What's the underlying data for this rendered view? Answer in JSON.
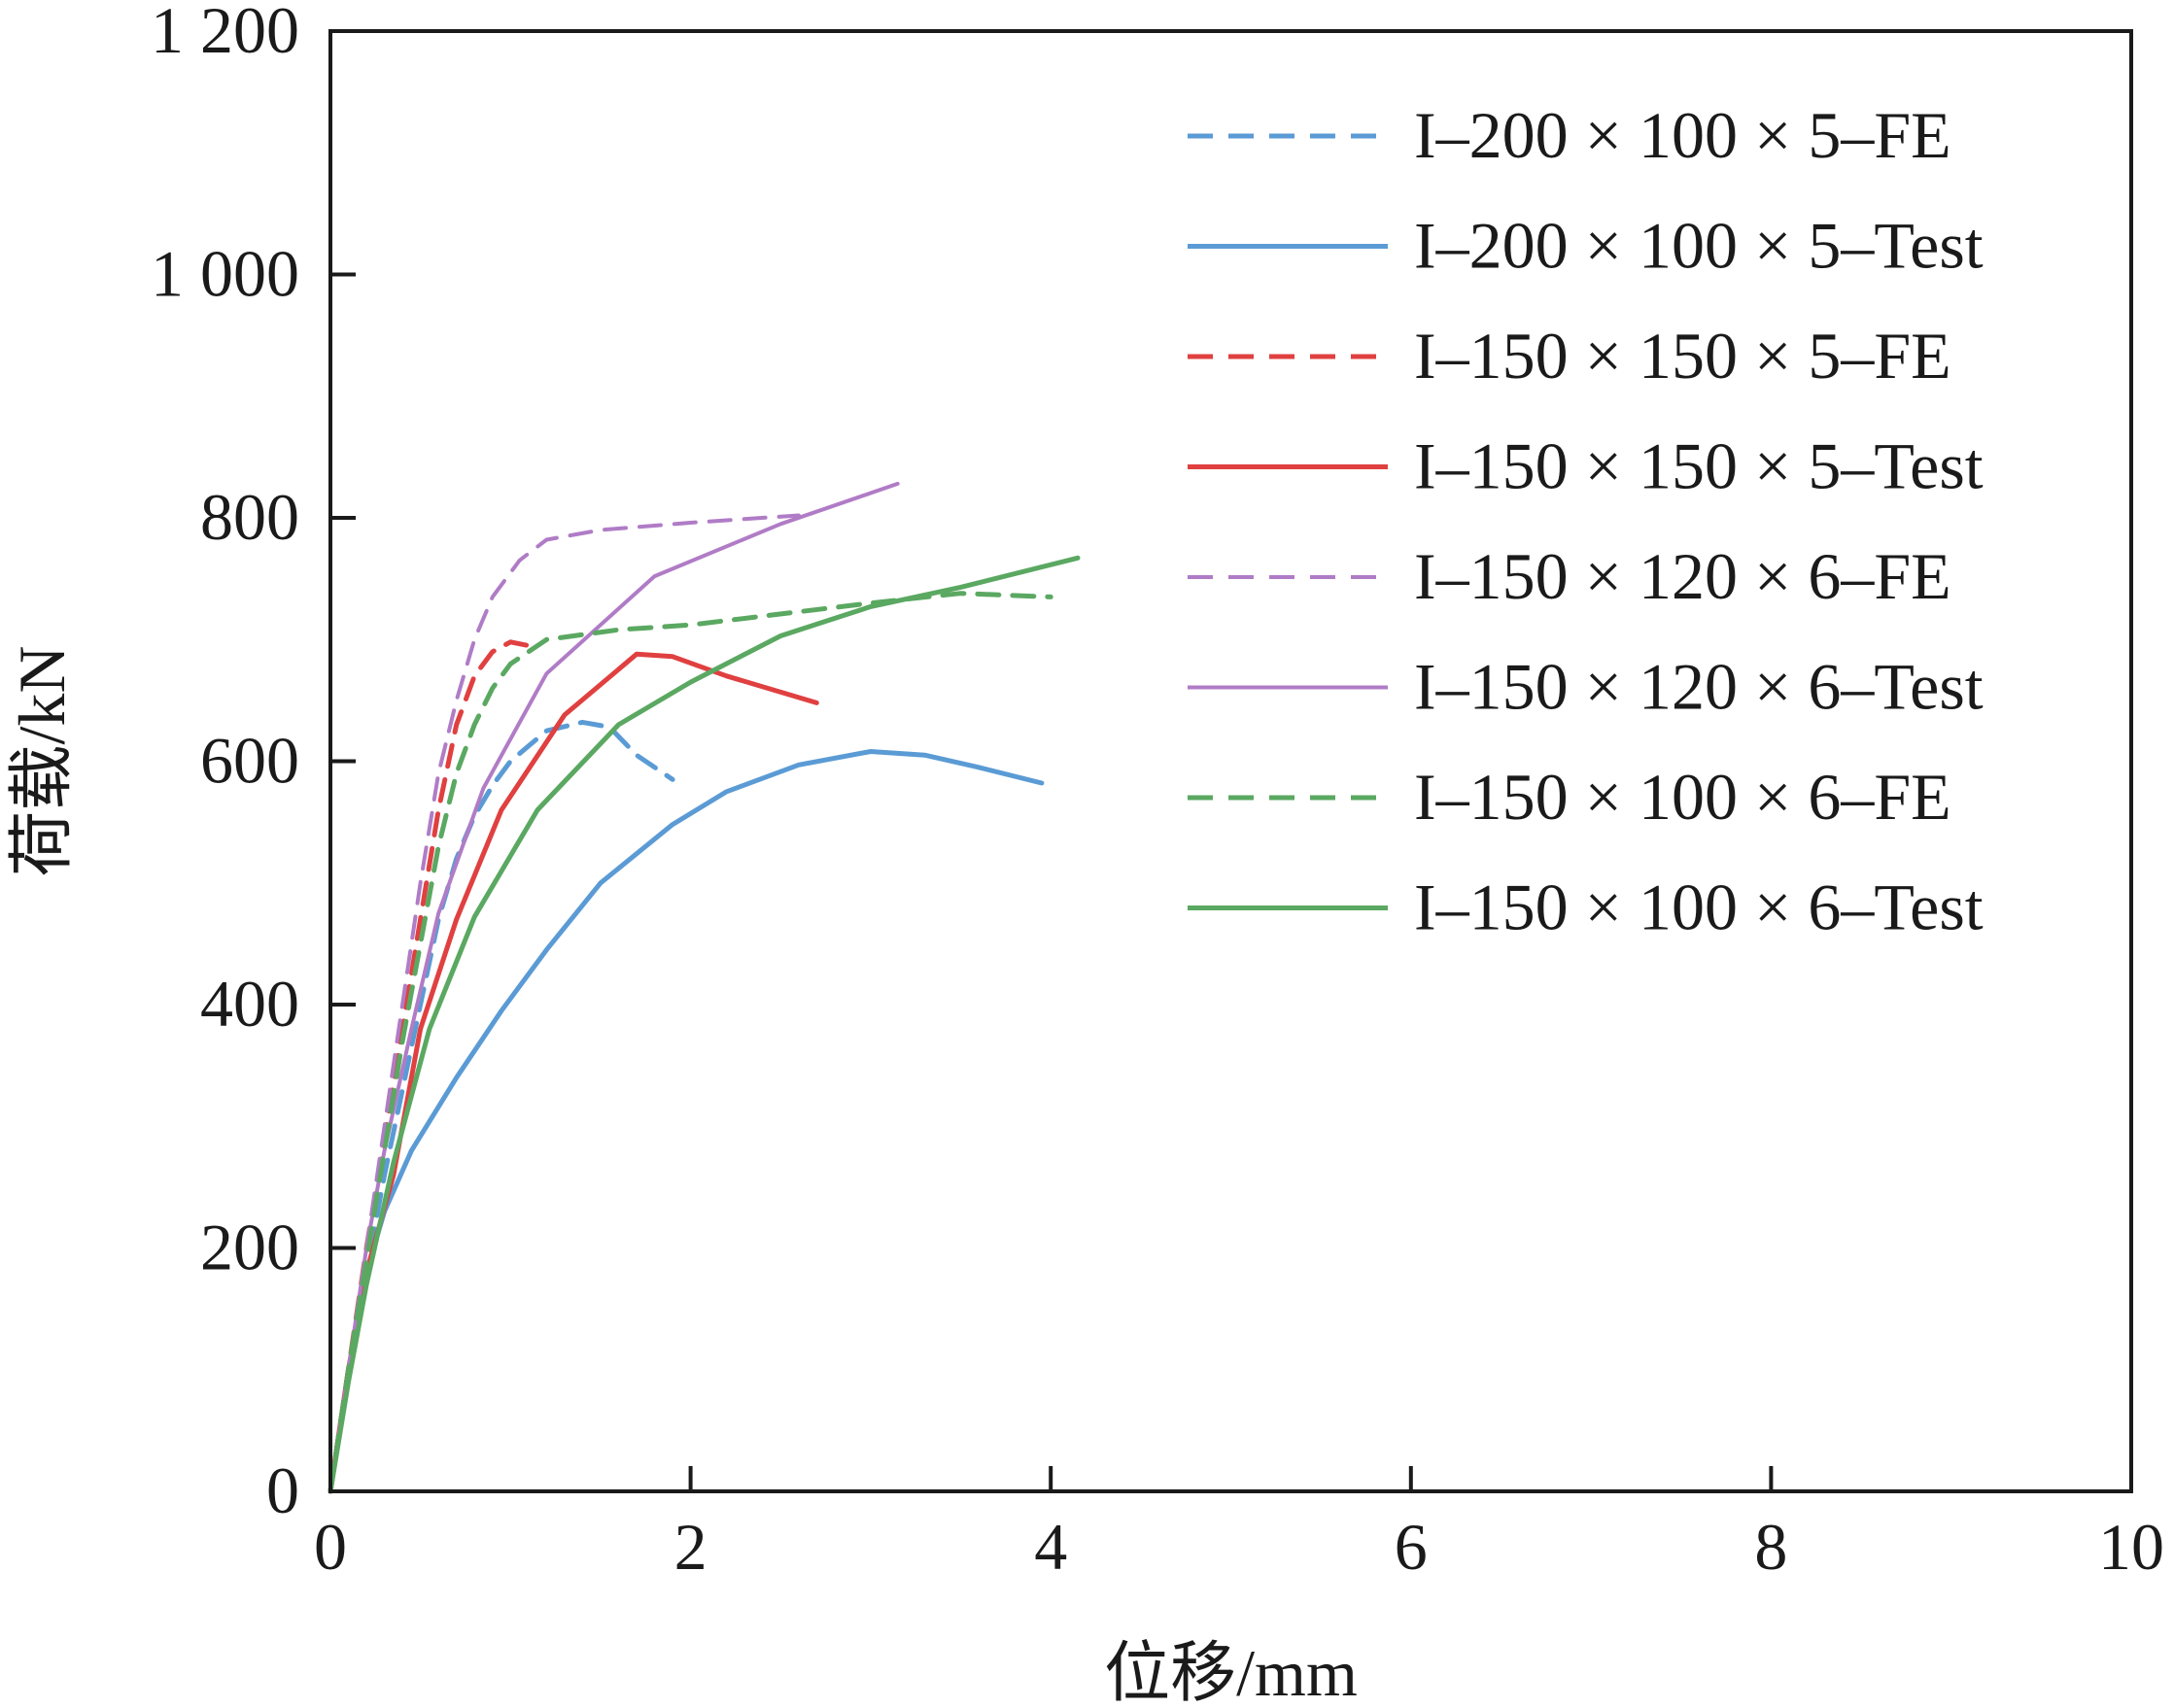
{
  "chart_data": {
    "type": "line",
    "xlabel": "位移/mm",
    "ylabel": "荷载/kN",
    "xlim": [
      0,
      10
    ],
    "ylim": [
      0,
      1200
    ],
    "x_ticks": [
      0,
      2,
      4,
      6,
      8,
      10
    ],
    "y_ticks": [
      0,
      200,
      400,
      600,
      800,
      1000,
      1200
    ],
    "x_tick_labels": [
      "0",
      "2",
      "4",
      "6",
      "8",
      "10"
    ],
    "y_tick_labels": [
      "0",
      "200",
      "400",
      "600",
      "800",
      "1 000",
      "1 200"
    ],
    "grid": false,
    "legend_position": "top-right",
    "series": [
      {
        "name": "I–200 × 100 × 5–FE",
        "color": "#5b9bd5",
        "dash": true,
        "width": 5,
        "points": [
          [
            0,
            0
          ],
          [
            0.1,
            100
          ],
          [
            0.2,
            180
          ],
          [
            0.3,
            260
          ],
          [
            0.4,
            330
          ],
          [
            0.5,
            400
          ],
          [
            0.6,
            470
          ],
          [
            0.7,
            520
          ],
          [
            0.8,
            555
          ],
          [
            0.9,
            580
          ],
          [
            1.0,
            600
          ],
          [
            1.2,
            625
          ],
          [
            1.4,
            632
          ],
          [
            1.55,
            628
          ],
          [
            1.7,
            605
          ],
          [
            1.9,
            585
          ]
        ]
      },
      {
        "name": "I–200 × 100 × 5–Test",
        "color": "#5b9bd5",
        "dash": false,
        "width": 5,
        "points": [
          [
            0,
            0
          ],
          [
            0.1,
            100
          ],
          [
            0.2,
            180
          ],
          [
            0.3,
            230
          ],
          [
            0.45,
            280
          ],
          [
            0.7,
            340
          ],
          [
            0.95,
            395
          ],
          [
            1.2,
            445
          ],
          [
            1.5,
            500
          ],
          [
            1.9,
            548
          ],
          [
            2.2,
            575
          ],
          [
            2.6,
            597
          ],
          [
            3.0,
            608
          ],
          [
            3.3,
            605
          ],
          [
            3.6,
            595
          ],
          [
            3.95,
            582
          ]
        ]
      },
      {
        "name": "I–150 × 150 × 5–FE",
        "color": "#e04040",
        "dash": true,
        "width": 5,
        "points": [
          [
            0,
            0
          ],
          [
            0.1,
            100
          ],
          [
            0.2,
            200
          ],
          [
            0.3,
            290
          ],
          [
            0.4,
            380
          ],
          [
            0.5,
            470
          ],
          [
            0.6,
            560
          ],
          [
            0.7,
            630
          ],
          [
            0.8,
            670
          ],
          [
            0.9,
            690
          ],
          [
            1.0,
            698
          ],
          [
            1.1,
            695
          ],
          [
            1.15,
            690
          ]
        ]
      },
      {
        "name": "I–150 × 150 × 5–Test",
        "color": "#e04040",
        "dash": false,
        "width": 5,
        "points": [
          [
            0,
            0
          ],
          [
            0.1,
            100
          ],
          [
            0.2,
            180
          ],
          [
            0.35,
            260
          ],
          [
            0.5,
            380
          ],
          [
            0.7,
            470
          ],
          [
            0.95,
            560
          ],
          [
            1.3,
            638
          ],
          [
            1.7,
            688
          ],
          [
            1.9,
            686
          ],
          [
            2.2,
            670
          ],
          [
            2.7,
            648
          ]
        ]
      },
      {
        "name": "I–150 × 120 × 6–FE",
        "color": "#b07cc6",
        "dash": true,
        "width": 4,
        "points": [
          [
            0,
            0
          ],
          [
            0.1,
            100
          ],
          [
            0.2,
            200
          ],
          [
            0.3,
            300
          ],
          [
            0.4,
            400
          ],
          [
            0.5,
            500
          ],
          [
            0.6,
            590
          ],
          [
            0.7,
            650
          ],
          [
            0.8,
            700
          ],
          [
            0.9,
            735
          ],
          [
            1.05,
            765
          ],
          [
            1.2,
            782
          ],
          [
            1.5,
            790
          ],
          [
            2.0,
            796
          ],
          [
            2.6,
            802
          ]
        ]
      },
      {
        "name": "I–150 × 120 × 6–Test",
        "color": "#b07cc6",
        "dash": false,
        "width": 4,
        "points": [
          [
            0,
            0
          ],
          [
            0.1,
            100
          ],
          [
            0.2,
            200
          ],
          [
            0.3,
            280
          ],
          [
            0.45,
            380
          ],
          [
            0.6,
            475
          ],
          [
            0.85,
            578
          ],
          [
            1.2,
            672
          ],
          [
            1.8,
            752
          ],
          [
            2.5,
            795
          ],
          [
            3.15,
            828
          ]
        ]
      },
      {
        "name": "I–150 × 100 × 6–FE",
        "color": "#5aa861",
        "dash": true,
        "width": 5,
        "points": [
          [
            0,
            0
          ],
          [
            0.1,
            100
          ],
          [
            0.2,
            190
          ],
          [
            0.3,
            280
          ],
          [
            0.4,
            370
          ],
          [
            0.5,
            450
          ],
          [
            0.6,
            530
          ],
          [
            0.7,
            590
          ],
          [
            0.8,
            630
          ],
          [
            0.9,
            660
          ],
          [
            1.0,
            680
          ],
          [
            1.2,
            700
          ],
          [
            1.6,
            708
          ],
          [
            2.0,
            712
          ],
          [
            3.0,
            730
          ],
          [
            3.5,
            738
          ],
          [
            4.0,
            735
          ]
        ]
      },
      {
        "name": "I–150 × 100 × 6–Test",
        "color": "#5aa861",
        "dash": false,
        "width": 5,
        "points": [
          [
            0,
            0
          ],
          [
            0.1,
            90
          ],
          [
            0.2,
            170
          ],
          [
            0.35,
            270
          ],
          [
            0.55,
            380
          ],
          [
            0.8,
            472
          ],
          [
            1.15,
            560
          ],
          [
            1.6,
            630
          ],
          [
            2.0,
            665
          ],
          [
            2.5,
            703
          ],
          [
            3.0,
            727
          ],
          [
            3.5,
            743
          ],
          [
            4.15,
            767
          ]
        ]
      }
    ]
  }
}
